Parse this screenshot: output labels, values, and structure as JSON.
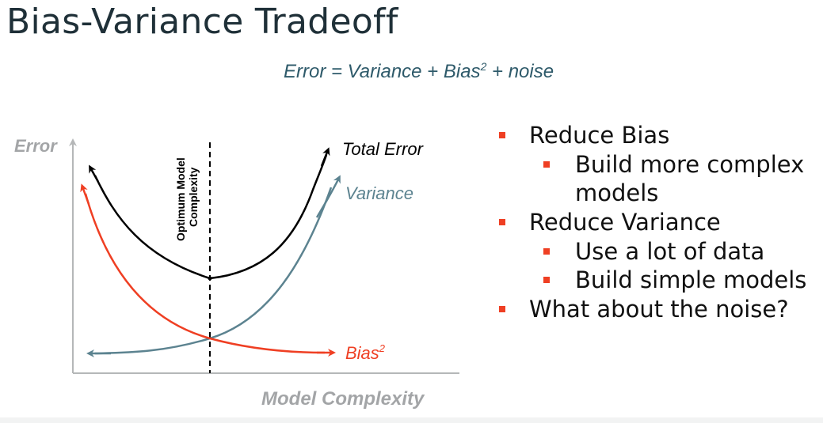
{
  "slide": {
    "title": "Bias-Variance Tradeoff",
    "formula": {
      "prefix": "Error = Variance + Bias",
      "sup": "2",
      "suffix": " + noise"
    }
  },
  "diagram": {
    "y_axis_label": "Error",
    "x_axis_label": "Model Complexity",
    "optimum_label_line1": "Optimum Model",
    "optimum_label_line2": "Complexity",
    "curves": {
      "total_error": {
        "label": "Total Error",
        "color": "#000000"
      },
      "variance": {
        "label": "Variance",
        "color": "#5c8390"
      },
      "bias": {
        "label": "Bias",
        "sup": "2",
        "color": "#ef3f23"
      }
    },
    "axis_color": "#b5b7b8",
    "axis_label_color": "#a3a5a7"
  },
  "bullets": [
    {
      "text": "Reduce Bias",
      "children": [
        {
          "text": "Build more complex",
          "cont": "models"
        }
      ]
    },
    {
      "text": "Reduce Variance",
      "children": [
        {
          "text": "Use a lot of data"
        },
        {
          "text": "Build simple models"
        }
      ]
    },
    {
      "text": "What about the noise?",
      "children": []
    }
  ],
  "colors": {
    "bullet_marker": "#ef3f23",
    "title": "#1f3038",
    "formula": "#2e5a6a"
  }
}
